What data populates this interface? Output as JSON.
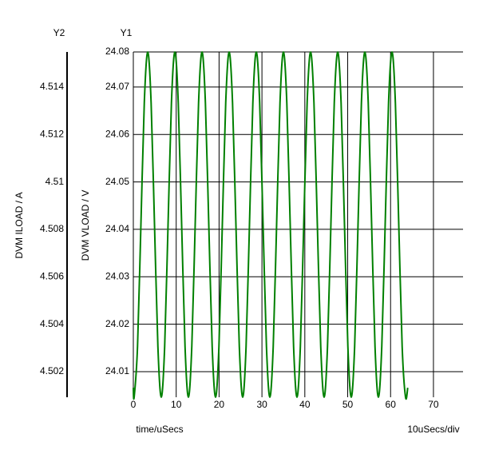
{
  "chart_data": {
    "type": "line",
    "y2_header": "Y2",
    "y1_header": "Y1",
    "ylabel": "DVM VLOAD / V",
    "y2label": "DVM ILOAD / A",
    "xlabel": "time/uSecs",
    "x_scale_note": "10uSecs/div",
    "xlim": [
      0,
      76.9
    ],
    "xticks": [
      0,
      10,
      20,
      30,
      40,
      50,
      60,
      70
    ],
    "ylim": [
      24.0046,
      24.0774
    ],
    "yticks": [
      24.01,
      24.02,
      24.03,
      24.04,
      24.05,
      24.06,
      24.07,
      {
        "value": 24.0774,
        "label": "24.08"
      }
    ],
    "y2lim": [
      4.50092,
      4.51548
    ],
    "y2ticks": [
      4.502,
      4.504,
      4.506,
      4.508,
      4.51,
      4.512,
      4.514
    ],
    "grid": true,
    "series": [
      {
        "name": "DVM VLOAD",
        "color": "#008000",
        "x": [
          0,
          0.19,
          0.98,
          1.77,
          2.56,
          3.36,
          4.15,
          4.94,
          5.73,
          6.52,
          7.31,
          8.1,
          8.89,
          9.69,
          10.48,
          11.27,
          12.06,
          12.85,
          13.64,
          14.43,
          15.22,
          16.02,
          16.81,
          17.6,
          18.39,
          19.18,
          19.97,
          20.76,
          21.55,
          22.35,
          23.14,
          23.93,
          24.72,
          25.51,
          26.3,
          27.09,
          27.88,
          28.68,
          29.47,
          30.26,
          31.05,
          31.84,
          32.63,
          33.42,
          34.21,
          35.01,
          35.8,
          36.59,
          37.38,
          38.17,
          38.96,
          39.75,
          40.54,
          41.34,
          42.13,
          42.92,
          43.71,
          44.5,
          45.29,
          46.08,
          46.87,
          47.67,
          48.46,
          49.25,
          50.04,
          50.83,
          51.62,
          52.41,
          53.2,
          54.0,
          54.79,
          55.58,
          56.37,
          57.16,
          57.95,
          58.74,
          59.53,
          60.33,
          61.12,
          61.91,
          62.7,
          63.49,
          64.0
        ],
        "values": [
          24.0066,
          24.0046,
          24.0153,
          24.041,
          24.0667,
          24.0774,
          24.0667,
          24.041,
          24.0153,
          24.0046,
          24.0153,
          24.041,
          24.0667,
          24.0774,
          24.0667,
          24.041,
          24.0153,
          24.0046,
          24.0153,
          24.041,
          24.0667,
          24.0774,
          24.0667,
          24.041,
          24.0153,
          24.0046,
          24.0153,
          24.041,
          24.0667,
          24.0774,
          24.0667,
          24.041,
          24.0153,
          24.0046,
          24.0153,
          24.041,
          24.0667,
          24.0774,
          24.0667,
          24.041,
          24.0153,
          24.0046,
          24.0153,
          24.041,
          24.0667,
          24.0774,
          24.0667,
          24.041,
          24.0153,
          24.0046,
          24.0153,
          24.041,
          24.0667,
          24.0774,
          24.0667,
          24.041,
          24.0153,
          24.0046,
          24.0153,
          24.041,
          24.0667,
          24.0774,
          24.0667,
          24.041,
          24.0153,
          24.0046,
          24.0153,
          24.041,
          24.0667,
          24.0774,
          24.0667,
          24.041,
          24.0153,
          24.0046,
          24.0153,
          24.041,
          24.0667,
          24.0774,
          24.0667,
          24.041,
          24.0153,
          24.0046,
          24.0066
        ]
      }
    ]
  }
}
